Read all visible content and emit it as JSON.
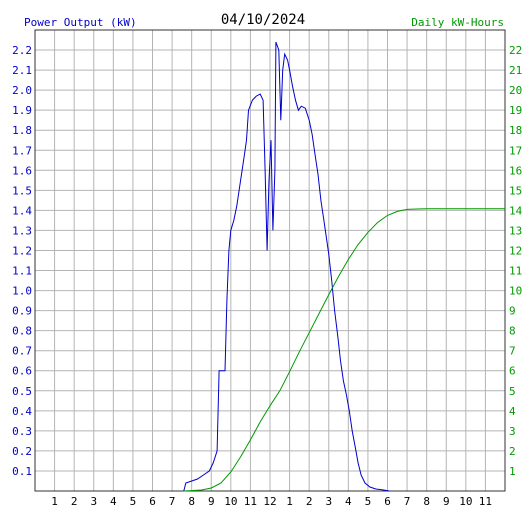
{
  "chart_data": {
    "type": "line",
    "title": "04/10/2024",
    "left_axis_label": "Power Output (kW)",
    "right_axis_label": "Daily kW-Hours",
    "x_tick_labels": [
      "1",
      "2",
      "3",
      "4",
      "5",
      "6",
      "7",
      "8",
      "9",
      "10",
      "11",
      "12",
      "1",
      "2",
      "3",
      "4",
      "5",
      "6",
      "7",
      "8",
      "9",
      "10",
      "11"
    ],
    "x_range_hours": [
      0,
      24
    ],
    "y_left_range": [
      0,
      2.3
    ],
    "y_left_ticks": [
      "0.1",
      "0.2",
      "0.3",
      "0.4",
      "0.5",
      "0.6",
      "0.7",
      "0.8",
      "0.9",
      "1.0",
      "1.1",
      "1.2",
      "1.3",
      "1.4",
      "1.5",
      "1.6",
      "1.7",
      "1.8",
      "1.9",
      "2.0",
      "2.1",
      "2.2"
    ],
    "y_right_range": [
      0,
      23
    ],
    "y_right_ticks": [
      "1",
      "2",
      "3",
      "4",
      "5",
      "6",
      "7",
      "8",
      "9",
      "10",
      "11",
      "12",
      "13",
      "14",
      "15",
      "16",
      "17",
      "18",
      "19",
      "20",
      "21",
      "22"
    ],
    "grid": true,
    "series": [
      {
        "axis": "left",
        "color": "#0000cc",
        "points": [
          [
            7.6,
            0.0
          ],
          [
            7.7,
            0.04
          ],
          [
            8.0,
            0.05
          ],
          [
            8.3,
            0.06
          ],
          [
            8.6,
            0.08
          ],
          [
            8.9,
            0.1
          ],
          [
            9.1,
            0.14
          ],
          [
            9.3,
            0.2
          ],
          [
            9.4,
            0.6
          ],
          [
            9.7,
            0.6
          ],
          [
            9.8,
            0.95
          ],
          [
            9.9,
            1.2
          ],
          [
            10.0,
            1.3
          ],
          [
            10.15,
            1.35
          ],
          [
            10.3,
            1.42
          ],
          [
            10.5,
            1.55
          ],
          [
            10.65,
            1.65
          ],
          [
            10.8,
            1.75
          ],
          [
            10.9,
            1.9
          ],
          [
            11.1,
            1.95
          ],
          [
            11.3,
            1.97
          ],
          [
            11.5,
            1.98
          ],
          [
            11.65,
            1.95
          ],
          [
            11.75,
            1.6
          ],
          [
            11.85,
            1.2
          ],
          [
            11.95,
            1.55
          ],
          [
            12.05,
            1.75
          ],
          [
            12.15,
            1.3
          ],
          [
            12.25,
            1.6
          ],
          [
            12.3,
            2.24
          ],
          [
            12.45,
            2.2
          ],
          [
            12.55,
            1.85
          ],
          [
            12.65,
            2.1
          ],
          [
            12.75,
            2.18
          ],
          [
            12.9,
            2.15
          ],
          [
            13.0,
            2.1
          ],
          [
            13.15,
            2.02
          ],
          [
            13.3,
            1.95
          ],
          [
            13.45,
            1.9
          ],
          [
            13.6,
            1.92
          ],
          [
            13.8,
            1.91
          ],
          [
            14.0,
            1.85
          ],
          [
            14.15,
            1.78
          ],
          [
            14.3,
            1.68
          ],
          [
            14.45,
            1.58
          ],
          [
            14.6,
            1.45
          ],
          [
            14.75,
            1.35
          ],
          [
            14.9,
            1.25
          ],
          [
            15.0,
            1.18
          ],
          [
            15.15,
            1.05
          ],
          [
            15.3,
            0.9
          ],
          [
            15.45,
            0.78
          ],
          [
            15.6,
            0.65
          ],
          [
            15.75,
            0.55
          ],
          [
            15.9,
            0.48
          ],
          [
            16.05,
            0.4
          ],
          [
            16.2,
            0.3
          ],
          [
            16.35,
            0.22
          ],
          [
            16.5,
            0.14
          ],
          [
            16.65,
            0.08
          ],
          [
            16.85,
            0.04
          ],
          [
            17.1,
            0.02
          ],
          [
            17.4,
            0.01
          ],
          [
            17.8,
            0.005
          ],
          [
            18.1,
            0.0
          ]
        ]
      },
      {
        "axis": "right",
        "color": "#009900",
        "points": [
          [
            7.6,
            0.0
          ],
          [
            8.5,
            0.05
          ],
          [
            9.0,
            0.15
          ],
          [
            9.5,
            0.4
          ],
          [
            10.0,
            0.95
          ],
          [
            10.5,
            1.7
          ],
          [
            11.0,
            2.55
          ],
          [
            11.5,
            3.45
          ],
          [
            12.0,
            4.25
          ],
          [
            12.5,
            5.0
          ],
          [
            13.0,
            5.95
          ],
          [
            13.5,
            6.95
          ],
          [
            14.0,
            7.9
          ],
          [
            14.5,
            8.85
          ],
          [
            15.0,
            9.8
          ],
          [
            15.5,
            10.7
          ],
          [
            16.0,
            11.55
          ],
          [
            16.5,
            12.3
          ],
          [
            17.0,
            12.9
          ],
          [
            17.5,
            13.4
          ],
          [
            18.0,
            13.75
          ],
          [
            18.5,
            13.95
          ],
          [
            19.0,
            14.05
          ],
          [
            19.5,
            14.07
          ],
          [
            20.0,
            14.08
          ],
          [
            22.0,
            14.08
          ],
          [
            24.0,
            14.08
          ]
        ]
      }
    ]
  }
}
